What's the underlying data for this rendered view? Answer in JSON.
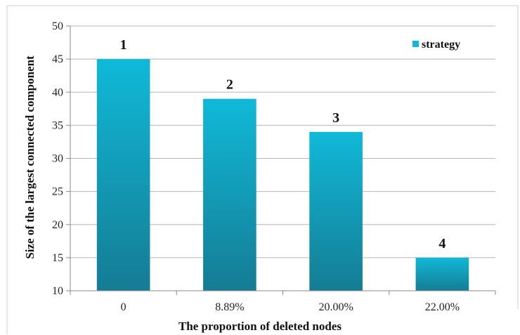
{
  "chart_data": {
    "type": "bar",
    "categories": [
      "0",
      "8.89%",
      "20.00%",
      "22.00%"
    ],
    "series": [
      {
        "name": "strategy",
        "values": [
          45,
          39,
          34,
          15
        ]
      }
    ],
    "data_labels": [
      "1",
      "2",
      "3",
      "4"
    ],
    "xlabel": "The proportion of deleted nodes",
    "ylabel": "Size of the largest connected component",
    "ylim": [
      10,
      50
    ],
    "yticks": [
      10,
      15,
      20,
      25,
      30,
      35,
      40,
      45,
      50
    ],
    "grid": true,
    "legend": "top-right",
    "colors": {
      "bar_top": "#10b9d8",
      "bar_bottom": "#157c94",
      "grid": "#b5b5b5",
      "axis": "#8a8a8a"
    }
  }
}
